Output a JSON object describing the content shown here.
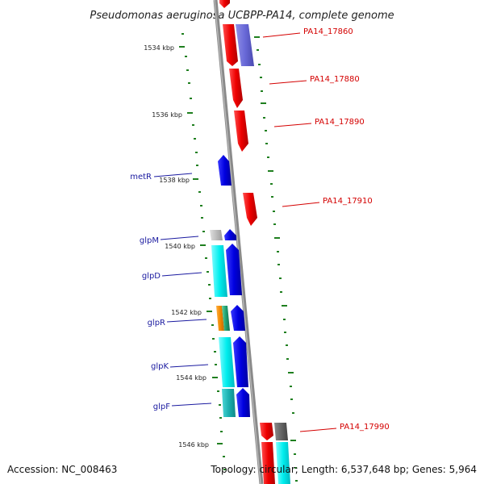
{
  "title": "Pseudomonas aeruginosa UCBPP-PA14, complete genome",
  "footer": {
    "accession": "Accession: NC_008463",
    "summary": "Topology: circular; Length: 6,537,648 bp; Genes: 5,964"
  },
  "colors": {
    "backbone": "#8a8a8a",
    "tick": "#1f7f1f",
    "left_label": "#1a1aa0",
    "right_label": "#d40000"
  },
  "kbp_ticks": [
    "1534 kbp",
    "1536 kbp",
    "1538 kbp",
    "1540 kbp",
    "1542 kbp",
    "1544 kbp",
    "1546 kbp"
  ],
  "left_labels": [
    "metR",
    "glpM",
    "glpD",
    "glpR",
    "glpK",
    "glpF"
  ],
  "right_labels": [
    "PA14_17860",
    "PA14_17880",
    "PA14_17890",
    "PA14_17910",
    "PA14_17990"
  ]
}
